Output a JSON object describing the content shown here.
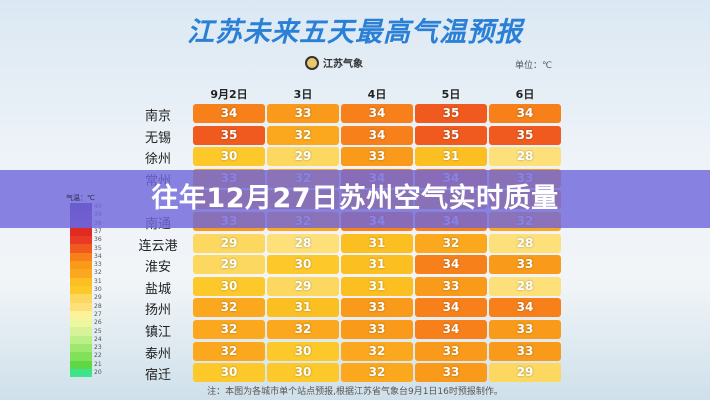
{
  "title": "江苏未来五天最高气温预报",
  "source_logo": "江苏气象",
  "unit": "单位：℃",
  "dates": [
    "9月2日",
    "3日",
    "4日",
    "5日",
    "6日"
  ],
  "rows": [
    {
      "city": "南京",
      "values": [
        34,
        33,
        34,
        35,
        34
      ]
    },
    {
      "city": "无锡",
      "values": [
        35,
        32,
        34,
        35,
        35
      ]
    },
    {
      "city": "徐州",
      "values": [
        30,
        29,
        33,
        31,
        28
      ]
    },
    {
      "city": "常州",
      "values": [
        33,
        32,
        34,
        34,
        33
      ]
    },
    {
      "city": "",
      "values": [
        null,
        null,
        null,
        null,
        null
      ]
    },
    {
      "city": "南通",
      "values": [
        33,
        32,
        34,
        34,
        32
      ]
    },
    {
      "city": "连云港",
      "values": [
        29,
        28,
        31,
        32,
        28
      ]
    },
    {
      "city": "淮安",
      "values": [
        29,
        30,
        31,
        34,
        33
      ]
    },
    {
      "city": "盐城",
      "values": [
        30,
        29,
        31,
        33,
        28
      ]
    },
    {
      "city": "扬州",
      "values": [
        32,
        31,
        33,
        34,
        34
      ]
    },
    {
      "city": "镇江",
      "values": [
        32,
        32,
        33,
        34,
        33
      ]
    },
    {
      "city": "泰州",
      "values": [
        32,
        30,
        32,
        33,
        33
      ]
    },
    {
      "city": "宿迁",
      "values": [
        30,
        30,
        32,
        33,
        29
      ]
    }
  ],
  "legend": {
    "header": "气温：℃",
    "labels": [
      "40",
      "39",
      "38",
      "37",
      "36",
      "35",
      "34",
      "33",
      "32",
      "31",
      "30",
      "29",
      "28",
      "27",
      "26",
      "25",
      "24",
      "23",
      "22",
      "21",
      "20"
    ]
  },
  "temp_colors": {
    "40": "#5a2e8e",
    "39": "#6a3598",
    "38": "#7a3ea0",
    "37": "#e02a22",
    "36": "#e83a24",
    "35": "#f05a1e",
    "34": "#f7801a",
    "33": "#f99a1a",
    "32": "#fba81e",
    "31": "#fcbf22",
    "30": "#fdc82a",
    "29": "#fcd860",
    "28": "#fde07a",
    "27": "#fbf29a",
    "26": "#eef7a0",
    "25": "#d6f39a",
    "24": "#bdef88",
    "23": "#9fe870",
    "22": "#82e05a",
    "21": "#5fd846",
    "20": "#3ee38a"
  },
  "note": "注：本图为各城市单个站点预报,根据江苏省气象台9月1日16时预报制作。",
  "banner": "往年12月27日苏州空气实时质量"
}
